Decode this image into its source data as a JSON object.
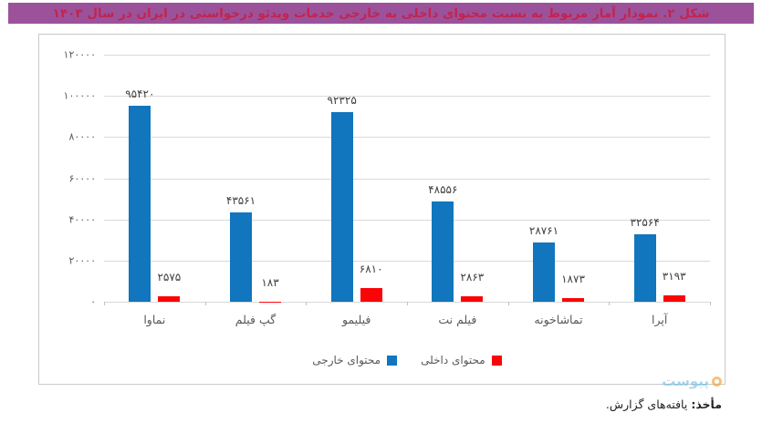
{
  "title_bar": {
    "text": "شکل ۲. نمودار آمار مربوط به نسبت محتوای داخلی به خارجی خدمات ویدئو درخواستی در ایران در سال ۱۴۰۳",
    "bg_color": "#9c529b",
    "text_color": "#c2244e"
  },
  "chart_data": {
    "type": "bar",
    "direction": "rtl",
    "title": "",
    "xlabel": "",
    "ylabel": "",
    "grid": true,
    "legend_position": "bottom",
    "categories": [
      "نماوا",
      "گپ فیلم",
      "فیلیمو",
      "فیلم نت",
      "تماشاخونه",
      "آپرا"
    ],
    "series": [
      {
        "name": "محتوای خارجی",
        "color": "#1176bd",
        "values": [
          95420,
          43561,
          92325,
          48556,
          28761,
          32564
        ],
        "value_labels": [
          "۹۵۴۲۰",
          "۴۳۵۶۱",
          "۹۲۳۲۵",
          "۴۸۵۵۶",
          "۲۸۷۶۱",
          "۳۲۵۶۴"
        ]
      },
      {
        "name": "محتوای داخلی",
        "color": "#fb0407",
        "values": [
          2575,
          183,
          6810,
          2863,
          1873,
          3193
        ],
        "value_labels": [
          "۲۵۷۵",
          "۱۸۳",
          "۶۸۱۰",
          "۲۸۶۳",
          "۱۸۷۳",
          "۳۱۹۳"
        ]
      }
    ],
    "y_axis": {
      "min": 0,
      "max": 120000,
      "step": 20000,
      "tick_labels_top_to_bottom": [
        "۱۲۰۰۰۰",
        "۱۰۰۰۰۰",
        "۸۰۰۰۰",
        "۶۰۰۰۰",
        "۴۰۰۰۰",
        "۲۰۰۰۰",
        "۰"
      ]
    },
    "legend": [
      {
        "label": "محتوای داخلی",
        "color": "#fb0407"
      },
      {
        "label": "محتوای خارجی",
        "color": "#1176bd"
      }
    ],
    "colors": {
      "gridline": "#d9d9d9",
      "axis_text": "#595959",
      "data_label_text": "#3f3f3f",
      "card_border": "#c9c9c9"
    }
  },
  "footer": {
    "source_label": "مأخذ:",
    "source_text": "یافته‌های گزارش.",
    "watermark": "پیوست"
  }
}
